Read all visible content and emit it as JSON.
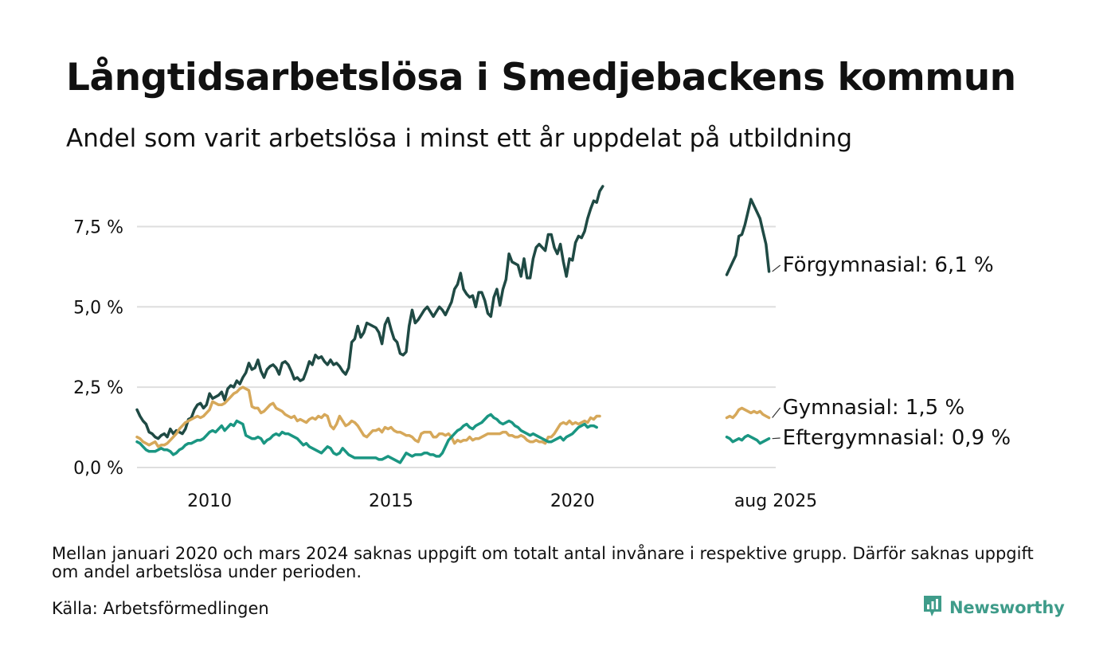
{
  "title": "Långtidsarbetslösa i Smedjebackens kommun",
  "subtitle": "Andel som varit arbetslösa i minst ett år uppdelat på utbildning",
  "note": "Mellan januari 2020 och mars 2024 saknas uppgift om totalt antal invånare i respektive grupp. Därför saknas uppgift om andel arbetslösa under perioden.",
  "source": "Källa: Arbetsförmedlingen",
  "brand": {
    "name": "Newsworthy",
    "icon": "newsworthy-logo-icon",
    "color": "#3f9c8a"
  },
  "chart_data": {
    "type": "line",
    "title": "Långtidsarbetslösa i Smedjebackens kommun",
    "subtitle": "Andel som varit arbetslösa i minst ett år uppdelat på utbildning",
    "xlabel": "",
    "ylabel": "",
    "ylim": [
      0,
      8.8
    ],
    "y_ticks": [
      0,
      2.5,
      5.0,
      7.5
    ],
    "y_tick_labels": [
      "0,0 %",
      "2,5 %",
      "5,0 %",
      "7,5 %"
    ],
    "x_range": [
      2008.0,
      2025.6
    ],
    "x_ticks": [
      2010,
      2015,
      2020,
      2025.6
    ],
    "x_tick_labels": [
      "2010",
      "2015",
      "2020",
      "aug 2025"
    ],
    "grid": true,
    "legend": "end-labels",
    "series": [
      {
        "name": "Förgymnasial",
        "end_label": "Förgymnasial: 6,1 %",
        "color": "#1f4a44",
        "segments": [
          {
            "start": 2008.0,
            "step": 0.08333,
            "values": [
              1.8,
              1.6,
              1.45,
              1.35,
              1.1,
              1.05,
              0.95,
              0.9,
              1.0,
              1.05,
              0.95,
              1.2,
              1.05,
              1.15,
              1.1,
              1.05,
              1.2,
              1.5,
              1.55,
              1.8,
              1.95,
              2.0,
              1.85,
              1.95,
              2.3,
              2.15,
              2.2,
              2.25,
              2.35,
              2.1,
              2.45,
              2.55,
              2.5,
              2.7,
              2.6,
              2.8,
              2.95,
              3.25,
              3.05,
              3.1,
              3.35,
              3.0,
              2.8,
              3.05,
              3.15,
              3.2,
              3.1,
              2.9,
              3.25,
              3.3,
              3.2,
              3.0,
              2.75,
              2.8,
              2.7,
              2.75,
              3.0,
              3.3,
              3.2,
              3.5,
              3.4,
              3.45,
              3.3,
              3.2,
              3.35,
              3.2,
              3.25,
              3.15,
              3.0,
              2.9,
              3.1,
              3.9,
              4.0,
              4.4,
              4.05,
              4.2,
              4.5,
              4.45,
              4.4,
              4.35,
              4.2,
              3.85,
              4.45,
              4.65,
              4.3,
              4.0,
              3.9,
              3.55,
              3.5,
              3.6,
              4.4,
              4.9,
              4.5,
              4.6,
              4.75,
              4.9,
              5.0,
              4.85,
              4.7,
              4.85,
              5.0,
              4.9,
              4.75,
              4.95,
              5.15,
              5.55,
              5.7,
              6.05,
              5.55,
              5.4,
              5.3,
              5.35,
              5.0,
              5.45,
              5.45,
              5.2,
              4.8,
              4.7,
              5.3,
              5.55,
              5.05,
              5.55,
              5.85,
              6.65,
              6.4,
              6.35,
              6.3,
              5.95,
              6.5,
              5.9,
              5.9,
              6.5,
              6.85,
              6.95,
              6.85,
              6.75,
              7.25,
              7.25,
              6.85,
              6.65,
              6.95,
              6.4,
              5.95,
              6.5,
              6.45,
              7.0,
              7.2,
              7.15,
              7.35,
              7.75,
              8.05,
              8.3,
              8.25,
              8.6,
              8.75
            ]
          },
          {
            "start": 2024.25,
            "step": 0.08333,
            "values": [
              6.0,
              6.2,
              6.4,
              6.6,
              7.2,
              7.25,
              7.55,
              7.95,
              8.35,
              8.15,
              7.95,
              7.75,
              7.35,
              6.95,
              6.1
            ]
          }
        ]
      },
      {
        "name": "Gymnasial",
        "end_label": "Gymnasial: 1,5 %",
        "color": "#d6a85a",
        "segments": [
          {
            "start": 2008.0,
            "step": 0.08333,
            "values": [
              0.95,
              0.9,
              0.8,
              0.75,
              0.7,
              0.75,
              0.8,
              0.65,
              0.7,
              0.7,
              0.75,
              0.85,
              0.95,
              1.05,
              1.2,
              1.3,
              1.4,
              1.45,
              1.5,
              1.55,
              1.6,
              1.55,
              1.6,
              1.7,
              1.8,
              2.05,
              2.0,
              1.95,
              1.95,
              2.0,
              2.1,
              2.2,
              2.3,
              2.35,
              2.45,
              2.5,
              2.45,
              2.4,
              1.9,
              1.85,
              1.85,
              1.7,
              1.75,
              1.85,
              1.95,
              2.0,
              1.85,
              1.8,
              1.75,
              1.65,
              1.6,
              1.55,
              1.6,
              1.45,
              1.5,
              1.45,
              1.4,
              1.5,
              1.55,
              1.5,
              1.6,
              1.55,
              1.65,
              1.6,
              1.3,
              1.2,
              1.35,
              1.6,
              1.45,
              1.3,
              1.35,
              1.45,
              1.4,
              1.3,
              1.15,
              1.0,
              0.95,
              1.05,
              1.15,
              1.15,
              1.2,
              1.1,
              1.25,
              1.2,
              1.25,
              1.15,
              1.1,
              1.1,
              1.05,
              1.0,
              1.0,
              0.95,
              0.85,
              0.8,
              1.05,
              1.1,
              1.1,
              1.1,
              0.95,
              0.95,
              1.05,
              1.05,
              1.0,
              1.05,
              0.95,
              0.75,
              0.85,
              0.8,
              0.85,
              0.85,
              0.95,
              0.85,
              0.9,
              0.9,
              0.95,
              1.0,
              1.05,
              1.05,
              1.05,
              1.05,
              1.05,
              1.1,
              1.1,
              1.0,
              1.0,
              0.95,
              0.95,
              1.0,
              0.95,
              0.85,
              0.8,
              0.8,
              0.85,
              0.8,
              0.8,
              0.75,
              0.95,
              0.95,
              1.05,
              1.2,
              1.35,
              1.4,
              1.35,
              1.45,
              1.35,
              1.4,
              1.35,
              1.4,
              1.45,
              1.4,
              1.55,
              1.5,
              1.6,
              1.6
            ]
          },
          {
            "start": 2024.25,
            "step": 0.08333,
            "values": [
              1.55,
              1.6,
              1.55,
              1.65,
              1.8,
              1.85,
              1.8,
              1.75,
              1.7,
              1.75,
              1.7,
              1.75,
              1.65,
              1.6,
              1.55
            ]
          }
        ]
      },
      {
        "name": "Eftergymnasial",
        "end_label": "Eftergymnasial: 0,9 %",
        "color": "#1a9682",
        "segments": [
          {
            "start": 2008.0,
            "step": 0.08333,
            "values": [
              0.8,
              0.75,
              0.65,
              0.55,
              0.5,
              0.5,
              0.5,
              0.55,
              0.6,
              0.55,
              0.55,
              0.5,
              0.4,
              0.45,
              0.55,
              0.6,
              0.7,
              0.75,
              0.75,
              0.8,
              0.85,
              0.85,
              0.9,
              1.0,
              1.1,
              1.15,
              1.1,
              1.2,
              1.3,
              1.15,
              1.25,
              1.35,
              1.3,
              1.45,
              1.4,
              1.35,
              1.0,
              0.95,
              0.9,
              0.9,
              0.95,
              0.9,
              0.75,
              0.85,
              0.9,
              1.0,
              1.05,
              1.0,
              1.1,
              1.05,
              1.05,
              1.0,
              0.95,
              0.9,
              0.8,
              0.7,
              0.75,
              0.65,
              0.6,
              0.55,
              0.5,
              0.45,
              0.55,
              0.65,
              0.6,
              0.45,
              0.4,
              0.45,
              0.6,
              0.5,
              0.4,
              0.35,
              0.3,
              0.3,
              0.3,
              0.3,
              0.3,
              0.3,
              0.3,
              0.3,
              0.25,
              0.25,
              0.3,
              0.35,
              0.3,
              0.25,
              0.2,
              0.15,
              0.3,
              0.45,
              0.4,
              0.35,
              0.4,
              0.4,
              0.4,
              0.45,
              0.45,
              0.4,
              0.4,
              0.35,
              0.35,
              0.45,
              0.65,
              0.85,
              0.95,
              1.05,
              1.15,
              1.2,
              1.3,
              1.35,
              1.25,
              1.2,
              1.3,
              1.35,
              1.4,
              1.5,
              1.6,
              1.65,
              1.55,
              1.5,
              1.4,
              1.35,
              1.4,
              1.45,
              1.4,
              1.3,
              1.25,
              1.15,
              1.1,
              1.05,
              1.0,
              1.05,
              1.0,
              0.95,
              0.9,
              0.85,
              0.8,
              0.8,
              0.85,
              0.9,
              0.95,
              0.85,
              0.95,
              1.0,
              1.05,
              1.15,
              1.25,
              1.3,
              1.35,
              1.25,
              1.3,
              1.3,
              1.25
            ]
          },
          {
            "start": 2024.25,
            "step": 0.08333,
            "values": [
              0.95,
              0.9,
              0.8,
              0.85,
              0.9,
              0.85,
              0.95,
              1.0,
              0.95,
              0.9,
              0.85,
              0.75,
              0.8,
              0.85,
              0.9
            ]
          }
        ]
      }
    ]
  }
}
